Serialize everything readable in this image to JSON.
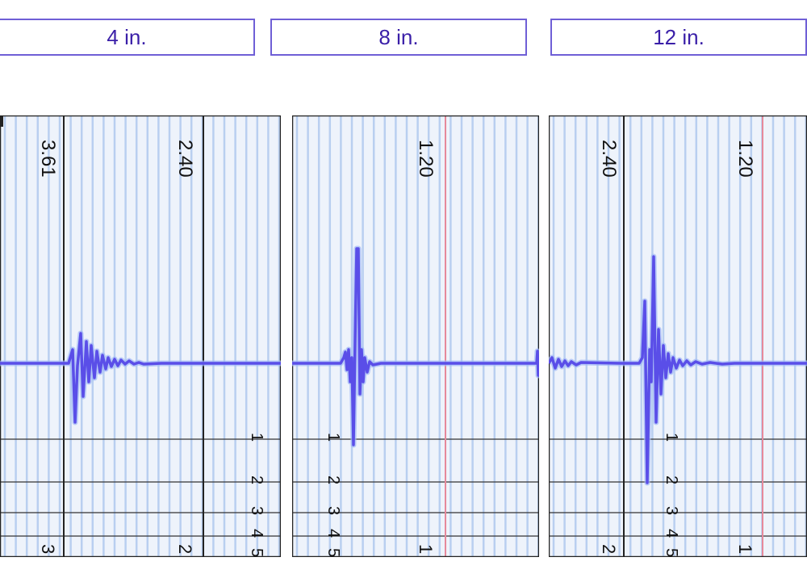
{
  "labels": [
    {
      "text": "4 in."
    },
    {
      "text": "8 in."
    },
    {
      "text": "12 in."
    }
  ],
  "panels": [
    {
      "time_labels": [
        "3.61",
        "2.40"
      ],
      "bottom_labels": [
        "3",
        "2"
      ],
      "line_numbers": [
        "1",
        "2",
        "3",
        "4",
        "5"
      ],
      "trace_color": "#5a4ee8"
    },
    {
      "time_labels": [
        "1.20"
      ],
      "bottom_labels": [
        "1"
      ],
      "line_numbers": [
        "1",
        "2",
        "3",
        "4",
        "5"
      ],
      "trace_color": "#5a4ee8"
    },
    {
      "time_labels": [
        "2.40",
        "1.20"
      ],
      "bottom_labels": [
        "2",
        "1"
      ],
      "line_numbers": [
        "1",
        "2",
        "3",
        "4",
        "5"
      ],
      "trace_color": "#5a4ee8"
    }
  ],
  "colors": {
    "label_border": "#6f5fd6",
    "label_text": "#3a1fa8",
    "grid_band": "#eef3fb",
    "grid_line": "#b9cff0",
    "trace": "#5a4ee8",
    "trace_glow": "#9fb6f6",
    "marker_red": "#e6899b"
  }
}
